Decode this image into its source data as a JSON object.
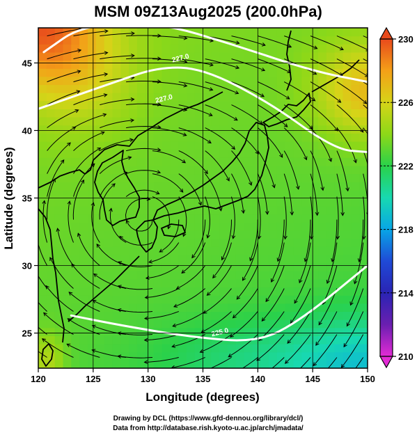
{
  "chart_data": {
    "type": "heatmap",
    "title": "MSM 09Z13Aug2025 (200.0hPa)",
    "xlabel": "Longitude (degrees)",
    "ylabel": "Latitude (degrees)",
    "xlim": [
      120,
      150
    ],
    "ylim": [
      22.4,
      47.6
    ],
    "x_ticks": [
      "120",
      "125",
      "130",
      "135",
      "140",
      "145",
      "150"
    ],
    "y_ticks": [
      "25",
      "30",
      "35",
      "40",
      "45"
    ],
    "grid": true,
    "colorbar": {
      "range": [
        210,
        230
      ],
      "ticks": [
        "210",
        "214",
        "218",
        "222",
        "226",
        "230"
      ],
      "placement": "right",
      "extend": "both"
    },
    "field": "temperature (K) with wind streamlines",
    "anticyclone_center": [
      129.5,
      33.5
    ],
    "contours": [
      {
        "label": "227.0",
        "points": [
          [
            120.5,
            45.8
          ],
          [
            124,
            47.8
          ],
          [
            131,
            48
          ],
          [
            138,
            46.3
          ],
          [
            145,
            44.4
          ],
          [
            150,
            43.6
          ]
        ]
      },
      {
        "label": "227.0",
        "points": [
          [
            120,
            41.6
          ],
          [
            127,
            43.6
          ],
          [
            131,
            44.7
          ],
          [
            135,
            44.6
          ],
          [
            141,
            42.1
          ],
          [
            147,
            38.6
          ],
          [
            150,
            38.4
          ]
        ]
      },
      {
        "label": "225.0",
        "points": [
          [
            123,
            26.3
          ],
          [
            128,
            25.5
          ],
          [
            134,
            24.7
          ],
          [
            140,
            24.3
          ],
          [
            144,
            26.0
          ],
          [
            150,
            30.0
          ]
        ]
      }
    ],
    "contour_label_positions": [
      [
        133.0,
        45.2
      ],
      [
        131.5,
        42.2
      ],
      [
        136.6,
        24.9
      ]
    ],
    "credits": [
      "Drawing by DCL (https://www.gfd-dennou.org/library/dcl/)",
      "Data from http://database.rish.kyoto-u.ac.jp/arch/jmadata/"
    ],
    "colors": {
      "colormap": [
        "#e22bd5",
        "#3a1fa6",
        "#1f4ad6",
        "#08a6e6",
        "#18d9b0",
        "#2ad14a",
        "#8dd818",
        "#d6d418",
        "#f4a018",
        "#e84a1c"
      ],
      "contour": "#ffffff",
      "streamline": "#000000",
      "coast": "#000000"
    }
  }
}
